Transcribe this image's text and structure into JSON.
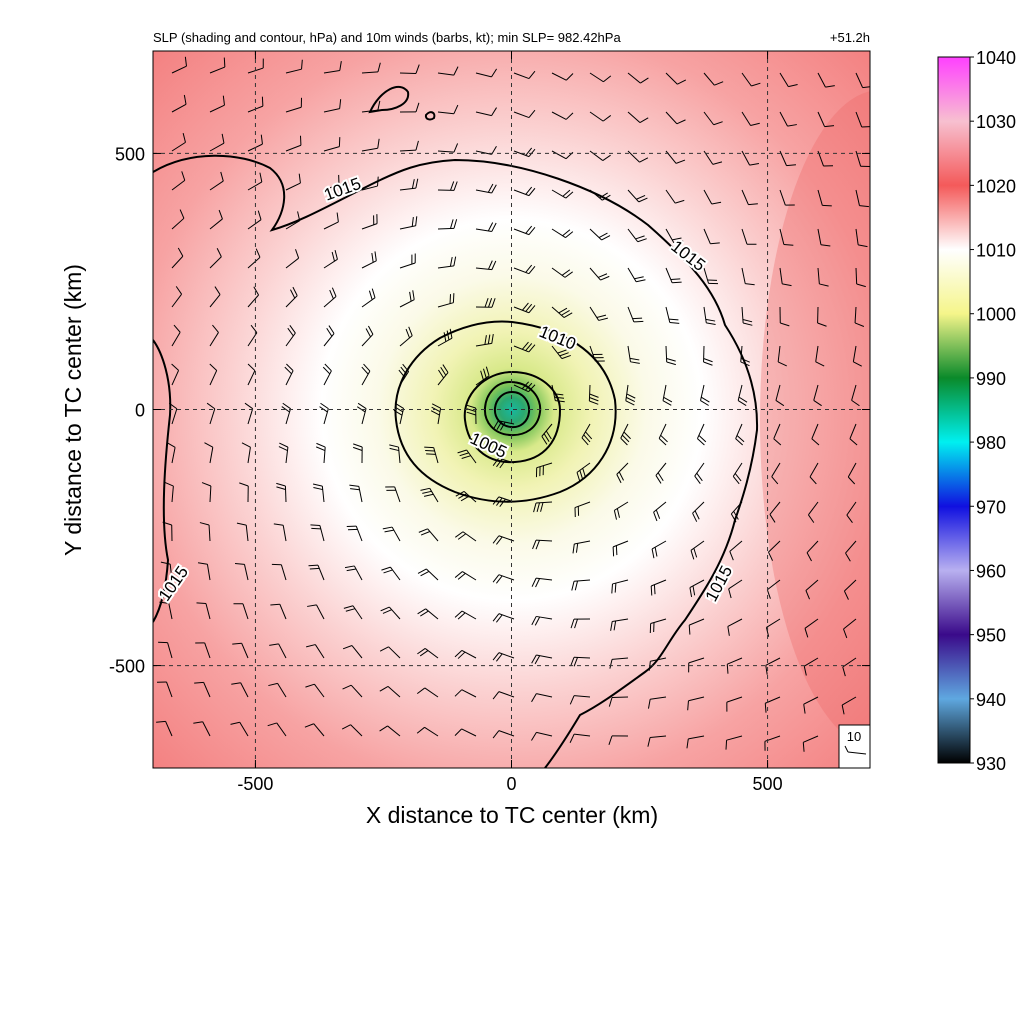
{
  "chart_data": {
    "type": "heatmap",
    "title": "SLP (shading and contour, hPa) and 10m winds (barbs, kt); min SLP= 982.42hPa",
    "time_label": "+51.2h",
    "xlabel": "X distance to TC center (km)",
    "ylabel": "Y distance to TC center (km)",
    "xlim": [
      -700,
      700
    ],
    "ylim": [
      -700,
      700
    ],
    "x_ticks": [
      -500,
      0,
      500
    ],
    "y_ticks": [
      -500,
      0,
      500
    ],
    "x_tick_labels": [
      "-500",
      "0",
      "500"
    ],
    "y_tick_labels": [
      "-500",
      "0",
      "500"
    ],
    "grid": "dashed at ±500 and 0",
    "min_slp_hpa": 982.42,
    "colorbar": {
      "min": 930,
      "max": 1040,
      "tick_values": [
        930,
        940,
        950,
        960,
        970,
        980,
        990,
        1000,
        1010,
        1020,
        1030,
        1040
      ],
      "tick_labels": [
        "930",
        "940",
        "950",
        "960",
        "970",
        "980",
        "990",
        "1000",
        "1010",
        "1020",
        "1030",
        "1040"
      ],
      "stops": [
        {
          "v": 930,
          "c": "#000000"
        },
        {
          "v": 940,
          "c": "#5fa8e0"
        },
        {
          "v": 950,
          "c": "#3a0a8a"
        },
        {
          "v": 960,
          "c": "#b8b0f0"
        },
        {
          "v": 970,
          "c": "#1010e0"
        },
        {
          "v": 980,
          "c": "#00f0f0"
        },
        {
          "v": 990,
          "c": "#0a8a2a"
        },
        {
          "v": 1000,
          "c": "#f5f58a"
        },
        {
          "v": 1010,
          "c": "#ffffff"
        },
        {
          "v": 1020,
          "c": "#f45a5a"
        },
        {
          "v": 1030,
          "c": "#f7c0d0"
        },
        {
          "v": 1040,
          "c": "#ff40ff"
        }
      ]
    },
    "contours": [
      {
        "level": 1015,
        "label": "1015"
      },
      {
        "level": 1010,
        "label": "1010"
      },
      {
        "level": 1005,
        "label": "1005"
      }
    ],
    "contour_labels": [
      {
        "label": "1015",
        "x": -330,
        "y": 430,
        "angle": -20
      },
      {
        "label": "1015",
        "x": 345,
        "y": 300,
        "angle": 38
      },
      {
        "label": "1015",
        "x": 405,
        "y": -340,
        "angle": -62
      },
      {
        "label": "1015",
        "x": -660,
        "y": -340,
        "angle": -55
      },
      {
        "label": "1010",
        "x": 90,
        "y": 140,
        "angle": 22
      },
      {
        "label": "1005",
        "x": -45,
        "y": -70,
        "angle": 25
      }
    ],
    "wind_reference": {
      "label": "10",
      "speed_kt": 10
    }
  }
}
